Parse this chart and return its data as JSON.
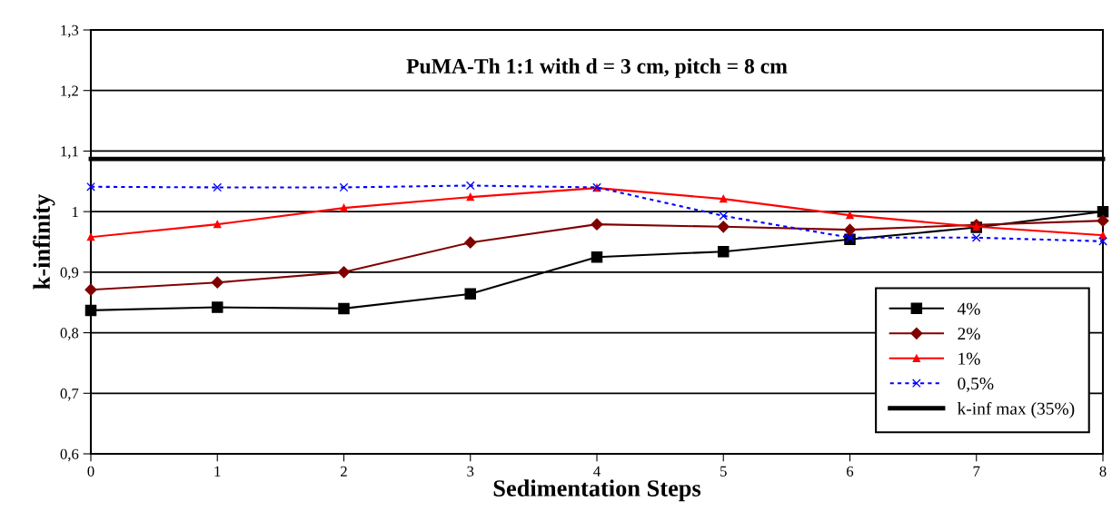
{
  "chart_data": {
    "type": "line",
    "title": "PuMA-Th 1:1 with d = 3 cm, pitch = 8 cm",
    "xlabel": "Sedimentation Steps",
    "ylabel": "k-infinity",
    "x": [
      0,
      1,
      2,
      3,
      4,
      5,
      6,
      7,
      8
    ],
    "series": [
      {
        "name": "4%",
        "color": "#000000",
        "marker": "square",
        "line_style": "solid",
        "values": [
          0.837,
          0.842,
          0.84,
          0.864,
          0.925,
          0.934,
          0.954,
          0.974,
          1.0
        ]
      },
      {
        "name": "2%",
        "color": "#800000",
        "marker": "diamond",
        "line_style": "solid",
        "values": [
          0.871,
          0.883,
          0.9,
          0.949,
          0.979,
          0.975,
          0.97,
          0.978,
          0.985
        ]
      },
      {
        "name": "1%",
        "color": "#ff0000",
        "marker": "triangle",
        "line_style": "solid",
        "values": [
          0.958,
          0.979,
          1.006,
          1.024,
          1.039,
          1.021,
          0.994,
          0.975,
          0.961
        ]
      },
      {
        "name": "0,5%",
        "color": "#0000ff",
        "marker": "cross",
        "line_style": "dotted",
        "values": [
          1.041,
          1.04,
          1.04,
          1.043,
          1.04,
          0.993,
          0.957,
          0.957,
          0.951
        ]
      },
      {
        "name": "k-inf max (35%)",
        "color": "#000000",
        "marker": "none",
        "line_style": "solid",
        "values": [
          1.087,
          1.087,
          1.087,
          1.087,
          1.087,
          1.087,
          1.087,
          1.087,
          1.087
        ]
      }
    ],
    "xlim": [
      0,
      8
    ],
    "xticks": [
      0,
      1,
      2,
      3,
      4,
      5,
      6,
      7,
      8
    ],
    "ylim": [
      0.6,
      1.3
    ],
    "yticks": [
      {
        "value": 0.6,
        "label": "0,6"
      },
      {
        "value": 0.7,
        "label": "0,7"
      },
      {
        "value": 0.8,
        "label": "0,8"
      },
      {
        "value": 0.9,
        "label": "0,9"
      },
      {
        "value": 1.0,
        "label": "1"
      },
      {
        "value": 1.1,
        "label": "1,1"
      },
      {
        "value": 1.2,
        "label": "1,2"
      },
      {
        "value": 1.3,
        "label": "1,3"
      }
    ],
    "grid": "y",
    "legend": "bottom right"
  }
}
